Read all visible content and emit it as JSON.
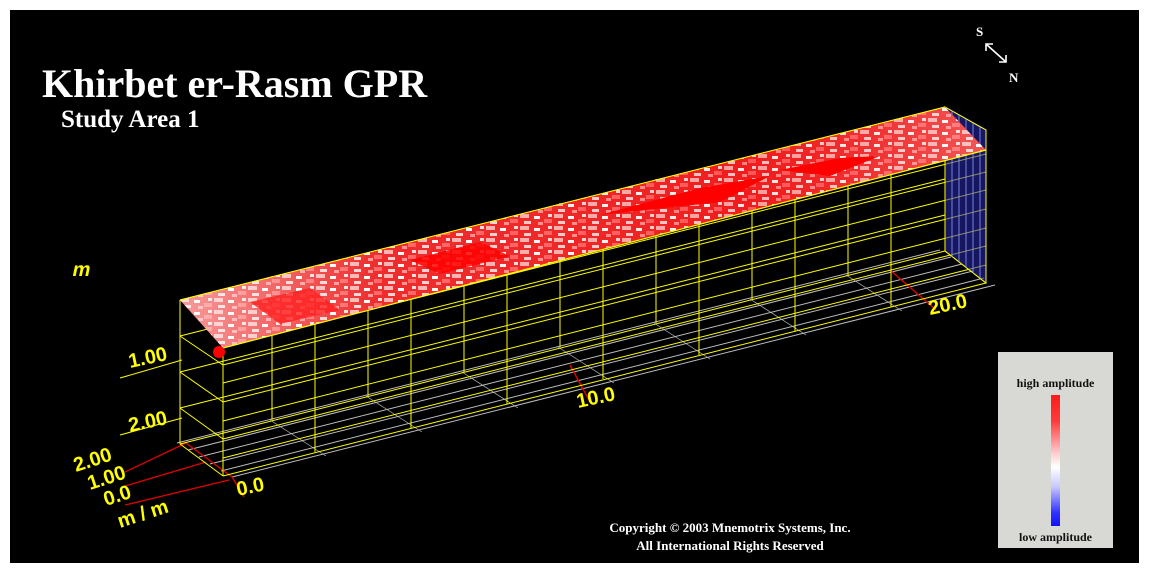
{
  "title": "Khirbet er-Rasm GPR",
  "subtitle": "Study Area 1",
  "compass": {
    "south": "S",
    "north": "N",
    "icon": "compass-arrow-icon"
  },
  "axes": {
    "depth_unit": "m",
    "depth_ticks": [
      "1.00",
      "2.00"
    ],
    "width_ticks": [
      "2.00",
      "1.00",
      "0.0"
    ],
    "width_unit": "m / m",
    "length_ticks": [
      "0.0",
      "10.0",
      "20.0"
    ]
  },
  "legend": {
    "high": "high amplitude",
    "low": "low amplitude"
  },
  "copyright": {
    "line1": "Copyright © 2003 Mnemotrix Systems, Inc.",
    "line2": "All International Rights Reserved"
  },
  "colors": {
    "background": "#000000",
    "grid": "#ffff00",
    "floor_grid": "#c8c8c8",
    "width_grid": "#ff0000",
    "high": "#ff0000",
    "low": "#0000ff",
    "legend_bg": "#d8d8d4"
  }
}
